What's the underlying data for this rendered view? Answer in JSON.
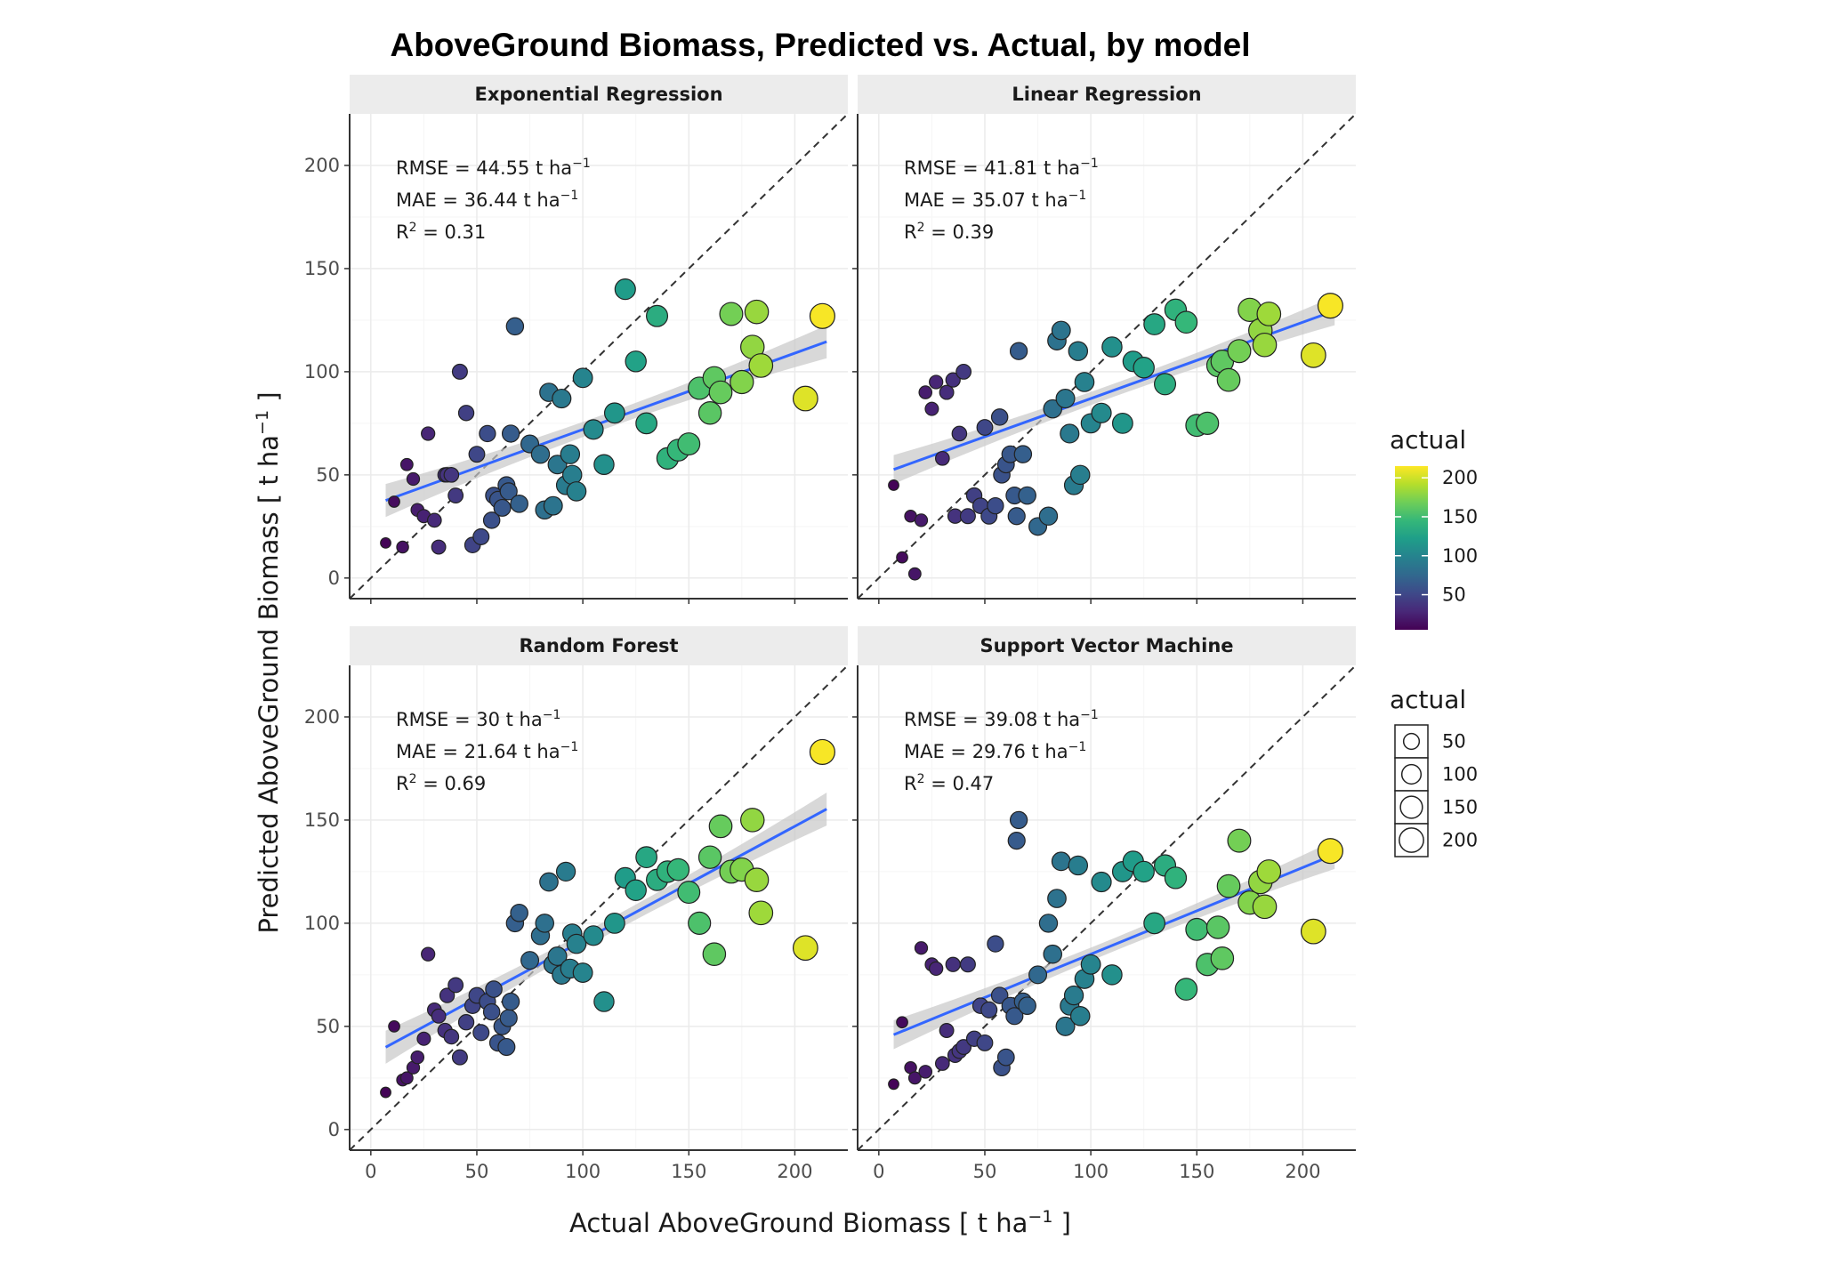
{
  "chart_data": {
    "type": "scatter",
    "title": "AboveGround Biomass, Predicted vs. Actual, by model",
    "xlabel": "Actual AboveGround Biomass [ t ha",
    "ylabel": "Predicted AboveGround Biomass [ t ha",
    "unit_sup": "−1",
    "unit_close": " ]",
    "xlim": [
      -10,
      225
    ],
    "ylim": [
      -10,
      225
    ],
    "x_ticks": [
      0,
      50,
      100,
      150,
      200
    ],
    "y_ticks": [
      0,
      50,
      100,
      150,
      200
    ],
    "x_tick_labels": [
      "0",
      "50",
      "100",
      "150",
      "200"
    ],
    "y_tick_labels": [
      "0",
      "50",
      "100",
      "150",
      "200"
    ],
    "x_grid_minor": [
      25,
      75,
      125,
      175
    ],
    "y_grid_minor": [
      25,
      75,
      125,
      175
    ],
    "reference_line": "y = x (dashed)",
    "actual_x": [
      7,
      11,
      15,
      17,
      20,
      22,
      25,
      27,
      30,
      32,
      35,
      36,
      38,
      40,
      42,
      45,
      48,
      50,
      52,
      55,
      57,
      58,
      60,
      62,
      64,
      65,
      66,
      68,
      70,
      75,
      80,
      82,
      84,
      86,
      88,
      90,
      92,
      94,
      95,
      97,
      100,
      105,
      110,
      115,
      120,
      125,
      130,
      135,
      140,
      145,
      150,
      155,
      160,
      162,
      165,
      170,
      175,
      180,
      182,
      184,
      205,
      213
    ],
    "legend": {
      "color": {
        "title": "actual",
        "ticks": [
          50,
          100,
          150,
          200
        ],
        "labels": [
          "50",
          "100",
          "150",
          "200"
        ],
        "range": [
          5,
          215
        ],
        "stops": [
          "#440154",
          "#482878",
          "#3e4989",
          "#31688e",
          "#26828e",
          "#1f9e89",
          "#35b779",
          "#6ece58",
          "#b5de2b",
          "#fde725"
        ]
      },
      "size": {
        "title": "actual",
        "values": [
          50,
          100,
          150,
          200
        ],
        "labels": [
          "50",
          "100",
          "150",
          "200"
        ]
      }
    },
    "panels": [
      {
        "title": "Exponential Regression",
        "rmse_label": "RMSE = 44.55 t ha",
        "mae_label": "MAE = 36.44 t ha",
        "r2_label": " = 0.31",
        "fit": {
          "intercept": 35,
          "slope": 0.37,
          "x_range": [
            7,
            215
          ],
          "se": 8
        },
        "y": [
          17,
          37,
          15,
          55,
          48,
          33,
          30,
          70,
          28,
          15,
          50,
          50,
          50,
          40,
          100,
          80,
          16,
          60,
          20,
          70,
          28,
          40,
          38,
          34,
          45,
          42,
          70,
          122,
          36,
          65,
          60,
          33,
          90,
          35,
          55,
          87,
          45,
          60,
          50,
          42,
          97,
          72,
          55,
          80,
          140,
          105,
          75,
          127,
          58,
          62,
          65,
          92,
          80,
          97,
          90,
          128,
          95,
          112,
          129,
          103,
          87,
          127
        ]
      },
      {
        "title": "Linear Regression",
        "rmse_label": "RMSE = 41.81 t ha",
        "mae_label": "MAE = 35.07 t ha",
        "r2_label": " = 0.39",
        "fit": {
          "intercept": 50,
          "slope": 0.37,
          "x_range": [
            7,
            215
          ],
          "se": 7
        },
        "y": [
          45,
          10,
          30,
          2,
          28,
          90,
          82,
          95,
          58,
          90,
          96,
          30,
          70,
          100,
          30,
          40,
          35,
          73,
          30,
          35,
          78,
          50,
          55,
          60,
          40,
          30,
          110,
          60,
          40,
          25,
          30,
          82,
          115,
          120,
          87,
          70,
          45,
          110,
          50,
          95,
          75,
          80,
          112,
          75,
          105,
          102,
          123,
          94,
          130,
          124,
          74,
          75,
          103,
          105,
          96,
          110,
          130,
          120,
          113,
          128,
          108,
          132
        ]
      },
      {
        "title": "Random Forest",
        "rmse_label": "RMSE = 30 t ha",
        "mae_label": "MAE = 21.64 t ha",
        "r2_label": " = 0.69",
        "fit": {
          "intercept": 36,
          "slope": 0.555,
          "x_range": [
            7,
            215
          ],
          "se": 8
        },
        "y": [
          18,
          50,
          24,
          25,
          30,
          35,
          44,
          85,
          58,
          55,
          48,
          65,
          45,
          70,
          35,
          52,
          60,
          65,
          47,
          62,
          57,
          68,
          42,
          50,
          40,
          54,
          62,
          100,
          105,
          82,
          94,
          100,
          120,
          80,
          84,
          75,
          125,
          78,
          95,
          90,
          76,
          94,
          62,
          100,
          122,
          116,
          132,
          121,
          125,
          126,
          115,
          100,
          132,
          85,
          147,
          125,
          126,
          150,
          121,
          105,
          88,
          183
        ]
      },
      {
        "title": "Support Vector Machine",
        "rmse_label": "RMSE = 39.08 t ha",
        "mae_label": "MAE = 29.76 t ha",
        "r2_label": " = 0.47",
        "fit": {
          "intercept": 43,
          "slope": 0.42,
          "x_range": [
            7,
            215
          ],
          "se": 7
        },
        "y": [
          22,
          52,
          30,
          25,
          88,
          28,
          80,
          78,
          32,
          48,
          80,
          36,
          38,
          40,
          80,
          44,
          60,
          42,
          58,
          90,
          65,
          30,
          35,
          60,
          55,
          140,
          150,
          62,
          60,
          75,
          100,
          85,
          112,
          130,
          50,
          60,
          65,
          128,
          55,
          73,
          80,
          120,
          75,
          125,
          130,
          125,
          100,
          128,
          122,
          68,
          97,
          80,
          98,
          83,
          118,
          140,
          110,
          120,
          108,
          125,
          96,
          135
        ]
      }
    ]
  }
}
